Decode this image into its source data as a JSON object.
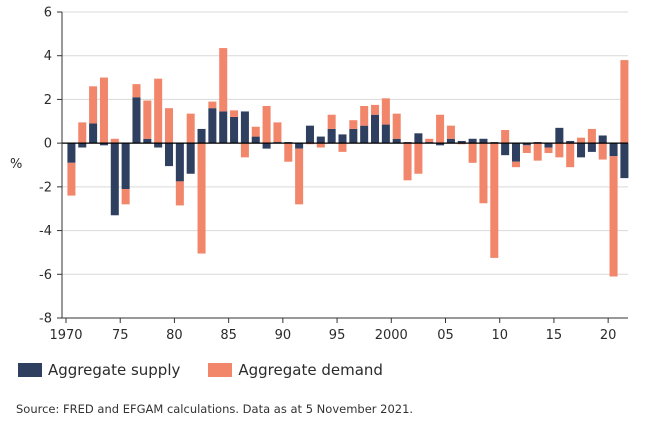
{
  "colors": {
    "supply": "#2f3f5f",
    "demand": "#f2866b",
    "axis": "#333333",
    "grid": "#d9d9d9"
  },
  "legend": {
    "supply_label": "Aggregate supply",
    "demand_label": "Aggregate demand"
  },
  "source": "Source: FRED and EFGAM calculations. Data as at 5 November 2021.",
  "chart_data": {
    "type": "bar",
    "stacked": true,
    "ylabel": "%",
    "ylim": [
      -8,
      6
    ],
    "yticks": [
      6,
      4,
      2,
      0,
      -2,
      -4,
      -6,
      -8
    ],
    "ytick_labels": [
      "6",
      "4",
      "2",
      "0",
      "-2",
      "-4",
      "-6",
      "-8"
    ],
    "xticks": [
      1970,
      1975,
      1980,
      1985,
      1990,
      1995,
      2000,
      2005,
      2010,
      2015,
      2020
    ],
    "xtick_labels": [
      "1970",
      "75",
      "80",
      "85",
      "90",
      "95",
      "2000",
      "05",
      "10",
      "15",
      "20"
    ],
    "years": [
      1970,
      1971,
      1972,
      1973,
      1974,
      1975,
      1976,
      1977,
      1978,
      1979,
      1980,
      1981,
      1982,
      1983,
      1984,
      1985,
      1986,
      1987,
      1988,
      1989,
      1990,
      1991,
      1992,
      1993,
      1994,
      1995,
      1996,
      1997,
      1998,
      1999,
      2000,
      2001,
      2002,
      2003,
      2004,
      2005,
      2006,
      2007,
      2008,
      2009,
      2010,
      2011,
      2012,
      2013,
      2014,
      2015,
      2016,
      2017,
      2018,
      2019,
      2020,
      2021
    ],
    "series": [
      {
        "name": "Aggregate supply",
        "values": [
          -0.9,
          -0.2,
          0.9,
          -0.1,
          -3.3,
          -2.1,
          2.1,
          0.2,
          -0.2,
          -1.05,
          -1.75,
          -1.4,
          0.65,
          1.6,
          1.45,
          1.2,
          1.45,
          0.3,
          -0.25,
          0.05,
          0.05,
          -0.25,
          0.8,
          0.3,
          0.65,
          0.4,
          0.65,
          0.8,
          1.3,
          0.85,
          0.2,
          0.05,
          0.45,
          0.05,
          -0.1,
          0.2,
          0.1,
          0.2,
          0.2,
          0.05,
          -0.55,
          -0.85,
          -0.1,
          0.05,
          -0.2,
          0.7,
          0.1,
          -0.65,
          -0.4,
          0.35,
          -0.6,
          -1.6
        ]
      },
      {
        "name": "Aggregate demand",
        "values": [
          -1.5,
          0.95,
          1.7,
          3.0,
          0.2,
          -0.7,
          0.6,
          1.75,
          2.95,
          1.6,
          -1.1,
          1.35,
          -5.05,
          0.3,
          2.9,
          0.3,
          -0.65,
          0.45,
          1.7,
          0.9,
          -0.85,
          -2.55,
          -0.05,
          -0.2,
          0.65,
          -0.4,
          0.4,
          0.9,
          0.45,
          1.2,
          1.15,
          -1.7,
          -1.4,
          0.15,
          1.3,
          0.6,
          -0.05,
          -0.9,
          -2.75,
          -5.25,
          0.6,
          -0.25,
          -0.35,
          -0.8,
          -0.25,
          -0.65,
          -1.1,
          0.25,
          0.65,
          -0.75,
          -5.5,
          3.8
        ]
      }
    ]
  }
}
